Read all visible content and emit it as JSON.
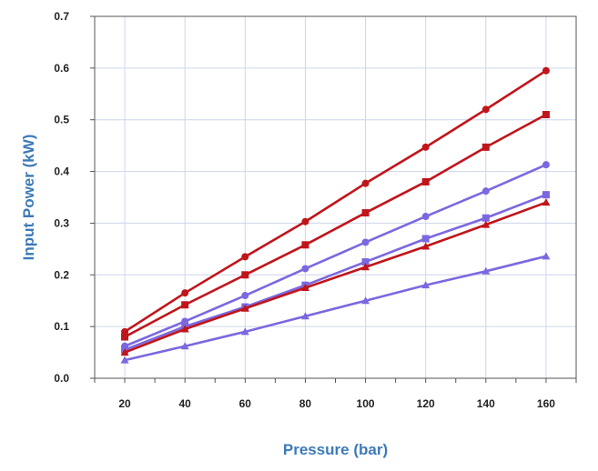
{
  "chart_data": {
    "type": "line",
    "xlabel": "Pressure (bar)",
    "ylabel": "Input Power (kW)",
    "x": [
      20,
      40,
      60,
      80,
      100,
      120,
      140,
      160
    ],
    "xlim": [
      10,
      170
    ],
    "ylim": [
      0.0,
      0.7
    ],
    "y_ticks": [
      "0.0",
      "0.1",
      "0.2",
      "0.3",
      "0.4",
      "0.5",
      "0.6",
      "0.7"
    ],
    "x_ticks": [
      "20",
      "40",
      "60",
      "80",
      "100",
      "120",
      "140",
      "160"
    ],
    "grid": true,
    "legend": "none",
    "series": [
      {
        "color": "#c0151b",
        "marker": "circle",
        "values": [
          0.09,
          0.165,
          0.235,
          0.303,
          0.377,
          0.447,
          0.52,
          0.595
        ]
      },
      {
        "color": "#c0151b",
        "marker": "square",
        "values": [
          0.08,
          0.142,
          0.2,
          0.258,
          0.32,
          0.38,
          0.447,
          0.51
        ]
      },
      {
        "color": "#7b68e0",
        "marker": "circle",
        "values": [
          0.062,
          0.11,
          0.16,
          0.212,
          0.263,
          0.313,
          0.362,
          0.413
        ]
      },
      {
        "color": "#7b68e0",
        "marker": "square",
        "values": [
          0.055,
          0.1,
          0.138,
          0.18,
          0.225,
          0.27,
          0.31,
          0.355
        ]
      },
      {
        "color": "#c0151b",
        "marker": "triangle",
        "values": [
          0.05,
          0.095,
          0.135,
          0.175,
          0.215,
          0.255,
          0.297,
          0.34
        ]
      },
      {
        "color": "#7b68e0",
        "marker": "triangle",
        "values": [
          0.035,
          0.062,
          0.09,
          0.12,
          0.15,
          0.18,
          0.207,
          0.236
        ]
      }
    ]
  }
}
